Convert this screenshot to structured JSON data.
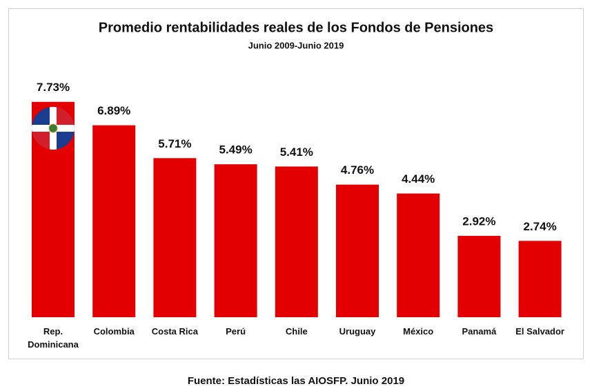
{
  "chart_data": {
    "type": "bar",
    "title": "Promedio rentabilidades reales de los Fondos de Pensiones",
    "subtitle": "Junio 2009-Junio 2019",
    "categories": [
      "Rep. Dominicana",
      "Colombia",
      "Costa Rica",
      "Perú",
      "Chile",
      "Uruguay",
      "México",
      "Panamá",
      "El Salvador"
    ],
    "values": [
      7.73,
      6.89,
      5.71,
      5.49,
      5.41,
      4.76,
      4.44,
      2.92,
      2.74
    ],
    "value_labels": [
      "7.73%",
      "6.89%",
      "5.71%",
      "5.49%",
      "5.41%",
      "4.76%",
      "4.44%",
      "2.92%",
      "2.74%"
    ],
    "color": "#e30000",
    "source": "Fuente: Estadísticas las AIOSFP. Junio 2019"
  }
}
